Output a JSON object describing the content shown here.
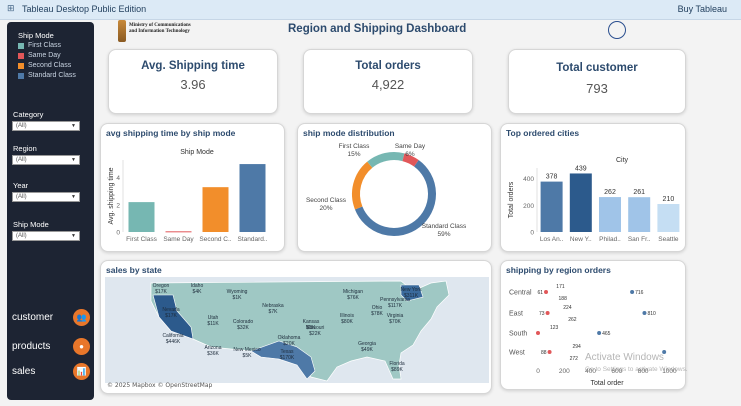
{
  "app": {
    "title": "Tableau Desktop Public Edition",
    "buy": "Buy Tableau"
  },
  "header": {
    "ministry_line1": "Ministry of Communications",
    "ministry_line2": "and Information Technology",
    "dashboard_title": "Region and Shipping Dashboard"
  },
  "sidebar": {
    "ship_mode_title": "Ship Mode",
    "legend": [
      {
        "label": "First Class",
        "color": "#76b7b2"
      },
      {
        "label": "Same Day",
        "color": "#e15759"
      },
      {
        "label": "Second Class",
        "color": "#f28e2b"
      },
      {
        "label": "Standard Class",
        "color": "#4e79a7"
      }
    ],
    "filters": [
      {
        "label": "Category",
        "value": "(All)"
      },
      {
        "label": "Region",
        "value": "(All)"
      },
      {
        "label": "Year",
        "value": "(All)"
      },
      {
        "label": "Ship Mode",
        "value": "(All)"
      }
    ],
    "nav": [
      {
        "label": "customer",
        "icon": "people-icon"
      },
      {
        "label": "products",
        "icon": "box-icon"
      },
      {
        "label": "sales",
        "icon": "chart-icon"
      }
    ]
  },
  "kpis": {
    "shipping": {
      "title": "Avg. Shipping time",
      "value": "3.96"
    },
    "orders": {
      "title": "Total orders",
      "value": "4,922"
    },
    "customer": {
      "title": "Total customer",
      "value": "793"
    }
  },
  "chart_data": [
    {
      "type": "bar",
      "title": "avg shipping time by ship mode",
      "legend_title": "Ship Mode",
      "categories": [
        "First Class",
        "Same Day",
        "Second C..",
        "Standard.."
      ],
      "values": [
        2.2,
        0.05,
        3.3,
        5.0
      ],
      "colors": [
        "#76b7b2",
        "#e15759",
        "#f28e2b",
        "#4e79a7"
      ],
      "ylabel": "Avg. shipping time",
      "yticks": [
        0,
        2,
        4
      ],
      "ylim": [
        0,
        5.3
      ]
    },
    {
      "type": "pie",
      "title": "ship mode distribution",
      "slices": [
        {
          "label": "Standard Class",
          "pct": "59%",
          "value": 59,
          "color": "#4e79a7"
        },
        {
          "label": "Second Class",
          "pct": "20%",
          "value": 20,
          "color": "#f28e2b"
        },
        {
          "label": "First Class",
          "pct": "15%",
          "value": 15,
          "color": "#76b7b2"
        },
        {
          "label": "Same Day",
          "pct": "6%",
          "value": 6,
          "color": "#e15759"
        }
      ]
    },
    {
      "type": "bar",
      "title": "Top ordered cities",
      "legend_title": "City",
      "categories": [
        "Los An..",
        "New Y..",
        "Philad..",
        "San Fr..",
        "Seattle"
      ],
      "values": [
        378,
        439,
        262,
        261,
        210
      ],
      "colors": [
        "#4e79a7",
        "#2c5a8c",
        "#a0c4e8",
        "#a0c4e8",
        "#c5def3"
      ],
      "ylabel": "Total orders",
      "yticks": [
        0,
        200,
        400
      ],
      "ylim": [
        0,
        480
      ]
    },
    {
      "type": "bar",
      "title": "shipping by region orders",
      "categories": [
        "Central",
        "East",
        "South",
        "West"
      ],
      "min": [
        61,
        73,
        0,
        88
      ],
      "max": [
        716,
        810,
        465,
        960
      ],
      "mid_upper": [
        171,
        224,
        123,
        294
      ],
      "mid_lower": [
        188,
        262,
        null,
        272
      ],
      "min_labels": [
        "61",
        "73",
        "",
        "88"
      ],
      "max_labels": [
        "716",
        "810",
        "465",
        ""
      ],
      "xlabel": "Total order",
      "xticks": [
        0,
        200,
        400,
        600,
        800,
        1000
      ],
      "xlim": [
        0,
        1050
      ]
    }
  ],
  "map": {
    "title": "sales by state",
    "credit": "© 2025 Mapbox © OpenStreetMap",
    "states": [
      {
        "name": "Oregon",
        "value": "$17K"
      },
      {
        "name": "Idaho",
        "value": "$4K"
      },
      {
        "name": "Wyoming",
        "value": "$1K"
      },
      {
        "name": "Nevada",
        "value": "$17K"
      },
      {
        "name": "Utah",
        "value": "$11K"
      },
      {
        "name": "Colorado",
        "value": "$32K"
      },
      {
        "name": "California",
        "value": "$446K"
      },
      {
        "name": "Arizona",
        "value": "$36K"
      },
      {
        "name": "New Mexico",
        "value": "$5K"
      },
      {
        "name": "Texas",
        "value": "$170K"
      },
      {
        "name": "Oklahoma",
        "value": "$20K"
      },
      {
        "name": "Kansas",
        "value": "$3K"
      },
      {
        "name": "Nebraska",
        "value": "$7K"
      },
      {
        "name": "Missouri",
        "value": "$22K"
      },
      {
        "name": "Illinois",
        "value": "$80K"
      },
      {
        "name": "Ohio",
        "value": "$78K"
      },
      {
        "name": "Michigan",
        "value": "$76K"
      },
      {
        "name": "New York",
        "value": "$311K"
      },
      {
        "name": "Pennsylvania",
        "value": "$117K"
      },
      {
        "name": "Virginia",
        "value": "$70K"
      },
      {
        "name": "Georgia",
        "value": "$49K"
      },
      {
        "name": "Florida",
        "value": "$89K"
      }
    ]
  },
  "watermark": {
    "line1": "Activate Windows",
    "line2": "Go to Settings to activate Windows."
  }
}
